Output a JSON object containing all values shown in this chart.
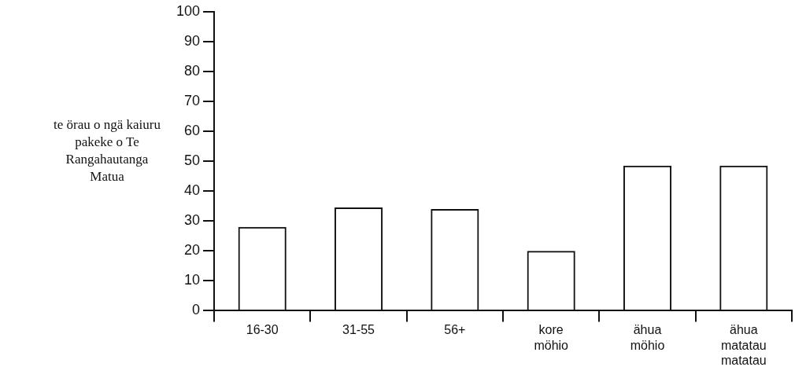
{
  "chart_data": {
    "type": "bar",
    "ylabel": "te örau o ngä kaiuru pakeke o Te Rangahautanga Matua",
    "categories": [
      "16-30",
      "31-55",
      "56+",
      "kore möhio",
      "ähua möhio",
      "ähua matatau matatau"
    ],
    "values": [
      28,
      34.5,
      34,
      20,
      48.5,
      48.5
    ],
    "color": "#111111",
    "ylim": [
      0,
      100
    ],
    "yticks": [
      0,
      10,
      20,
      30,
      40,
      50,
      60,
      70,
      80,
      90,
      100
    ],
    "grid": false,
    "legend": false
  }
}
